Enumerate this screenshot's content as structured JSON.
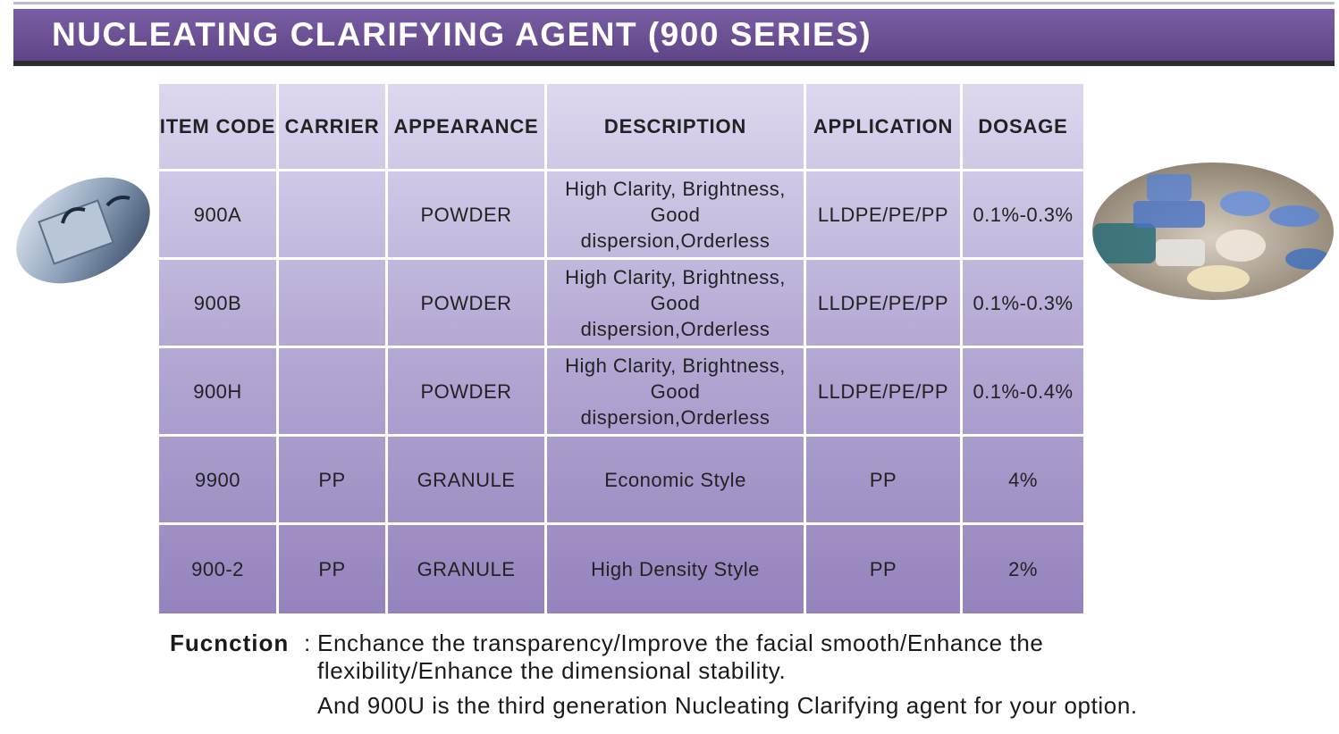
{
  "header": {
    "title": "NUCLEATING CLARIFYING AGENT (900 SERIES)"
  },
  "table": {
    "headers": [
      "ITEM CODE",
      "CARRIER",
      "APPEARANCE",
      "DESCRIPTION",
      "APPLICATION",
      "DOSAGE"
    ],
    "rows": [
      [
        "900A",
        null,
        "POWDER",
        "High Clarity, Brightness, Good dispersion,Orderless",
        "LLDPE/PE/PP",
        "0.1%-0.3%"
      ],
      [
        "900B",
        null,
        "POWDER",
        "High Clarity, Brightness, Good dispersion,Orderless",
        "LLDPE/PE/PP",
        "0.1%-0.3%"
      ],
      [
        "900H",
        null,
        "POWDER",
        "High Clarity, Brightness, Good dispersion,Orderless",
        "LLDPE/PE/PP",
        "0.1%-0.4%"
      ],
      [
        "9900",
        "PP",
        "GRANULE",
        "Economic Style",
        "PP",
        "4%"
      ],
      [
        "900-2",
        "PP",
        "GRANULE",
        "High Density Style",
        "PP",
        "2%"
      ]
    ]
  },
  "function": {
    "label": "Fucnction",
    "separator": ":",
    "text": "Enchance the transparency/Improve the facial smooth/Enhance the flexibility/Enhance the dimensional stability.",
    "note": "And 900U is the third generation Nucleating Clarifying agent for your option."
  }
}
